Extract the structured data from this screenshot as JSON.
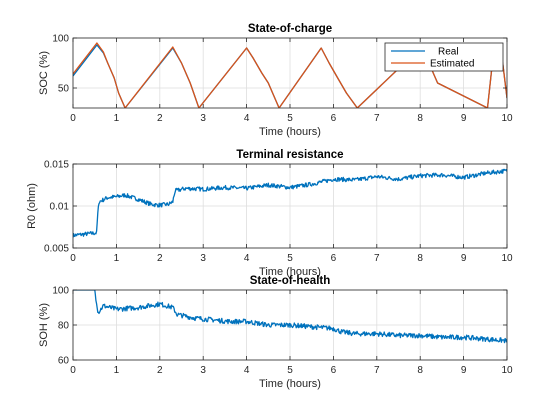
{
  "figure": {
    "colors": {
      "real": "#0072BD",
      "estimated": "#D95319",
      "axis": "#262626",
      "grid": "#dedede"
    }
  },
  "chart_data": [
    {
      "type": "line",
      "title": "State-of-charge",
      "xlabel": "Time (hours)",
      "ylabel": "SOC (%)",
      "xlim": [
        0,
        10
      ],
      "ylim": [
        30,
        100
      ],
      "xticks": [
        "0",
        "1",
        "2",
        "3",
        "4",
        "5",
        "6",
        "7",
        "8",
        "9",
        "10"
      ],
      "yticks": [
        "50",
        "100"
      ],
      "grid": true,
      "legend": "top-right",
      "series": [
        {
          "name": "Real",
          "x": [
            0,
            0.55,
            0.7,
            0.8,
            0.95,
            1.05,
            1.2,
            2.3,
            2.5,
            2.7,
            2.9,
            4.0,
            4.15,
            4.35,
            4.5,
            4.6,
            4.75,
            5.72,
            5.9,
            6.1,
            6.3,
            6.55,
            8.0,
            8.2,
            8.4,
            9.55,
            9.7,
            9.9,
            10
          ],
          "values": [
            62,
            93,
            85,
            75,
            60,
            45,
            30,
            90,
            75,
            55,
            30,
            90,
            80,
            65,
            55,
            45,
            30,
            90,
            75,
            60,
            45,
            30,
            90,
            75,
            55,
            30,
            90,
            75,
            40
          ]
        },
        {
          "name": "Estimated",
          "x": [
            0,
            0.55,
            0.7,
            0.8,
            0.95,
            1.05,
            1.2,
            2.3,
            2.5,
            2.7,
            2.9,
            4.0,
            4.15,
            4.35,
            4.5,
            4.6,
            4.75,
            5.72,
            5.9,
            6.1,
            6.3,
            6.55,
            8.0,
            8.2,
            8.4,
            9.55,
            9.7,
            9.9,
            10
          ],
          "values": [
            64,
            95,
            86,
            75,
            60,
            45,
            30,
            91,
            75,
            55,
            30,
            90,
            80,
            65,
            55,
            45,
            30,
            90,
            75,
            60,
            45,
            30,
            90,
            75,
            55,
            30,
            90,
            75,
            40
          ]
        }
      ]
    },
    {
      "type": "line",
      "title": "Terminal resistance",
      "xlabel": "Time (hours)",
      "ylabel": "R0 (ohm)",
      "xlim": [
        0,
        10
      ],
      "ylim": [
        0.005,
        0.015
      ],
      "xticks": [
        "0",
        "1",
        "2",
        "3",
        "4",
        "5",
        "6",
        "7",
        "8",
        "9",
        "10"
      ],
      "yticks": [
        "0.005",
        "0.01",
        "0.015"
      ],
      "grid": true,
      "series": [
        {
          "x": [
            0,
            0.55,
            0.56,
            0.58,
            0.6,
            0.8,
            1.0,
            1.2,
            1.5,
            1.8,
            2.0,
            2.2,
            2.3,
            2.35,
            2.6,
            3.0,
            3.5,
            4.0,
            4.5,
            5.0,
            5.5,
            6.0,
            6.5,
            7.0,
            7.5,
            8.0,
            8.5,
            9.0,
            9.5,
            10
          ],
          "values": [
            0.0065,
            0.0068,
            0.0085,
            0.0095,
            0.0105,
            0.011,
            0.0111,
            0.0113,
            0.0108,
            0.0102,
            0.0101,
            0.0102,
            0.0105,
            0.0118,
            0.0121,
            0.012,
            0.0122,
            0.0121,
            0.0125,
            0.0122,
            0.0126,
            0.0132,
            0.0131,
            0.0135,
            0.0132,
            0.0136,
            0.0137,
            0.0134,
            0.0139,
            0.0142
          ]
        }
      ]
    },
    {
      "type": "line",
      "title": "State-of-health",
      "xlabel": "Time (hours)",
      "ylabel": "SOH (%)",
      "xlim": [
        0,
        10
      ],
      "ylim": [
        60,
        100
      ],
      "xticks": [
        "0",
        "1",
        "2",
        "3",
        "4",
        "5",
        "6",
        "7",
        "8",
        "9",
        "10"
      ],
      "yticks": [
        "60",
        "80",
        "100"
      ],
      "grid": true,
      "series": [
        {
          "x": [
            0,
            0.5,
            0.55,
            0.58,
            0.7,
            1.0,
            1.5,
            2.0,
            2.3,
            2.4,
            2.8,
            3.2,
            3.6,
            4.0,
            4.5,
            5.0,
            5.5,
            6.0,
            6.2,
            6.5,
            7.0,
            7.5,
            8.0,
            8.5,
            9.0,
            9.5,
            10
          ],
          "values": [
            100,
            100,
            92,
            87,
            91,
            89,
            90,
            92,
            90,
            86,
            84,
            83,
            82,
            82,
            80,
            80,
            79,
            78,
            76,
            75,
            75,
            74,
            74,
            73,
            73,
            72,
            71
          ]
        }
      ]
    }
  ]
}
